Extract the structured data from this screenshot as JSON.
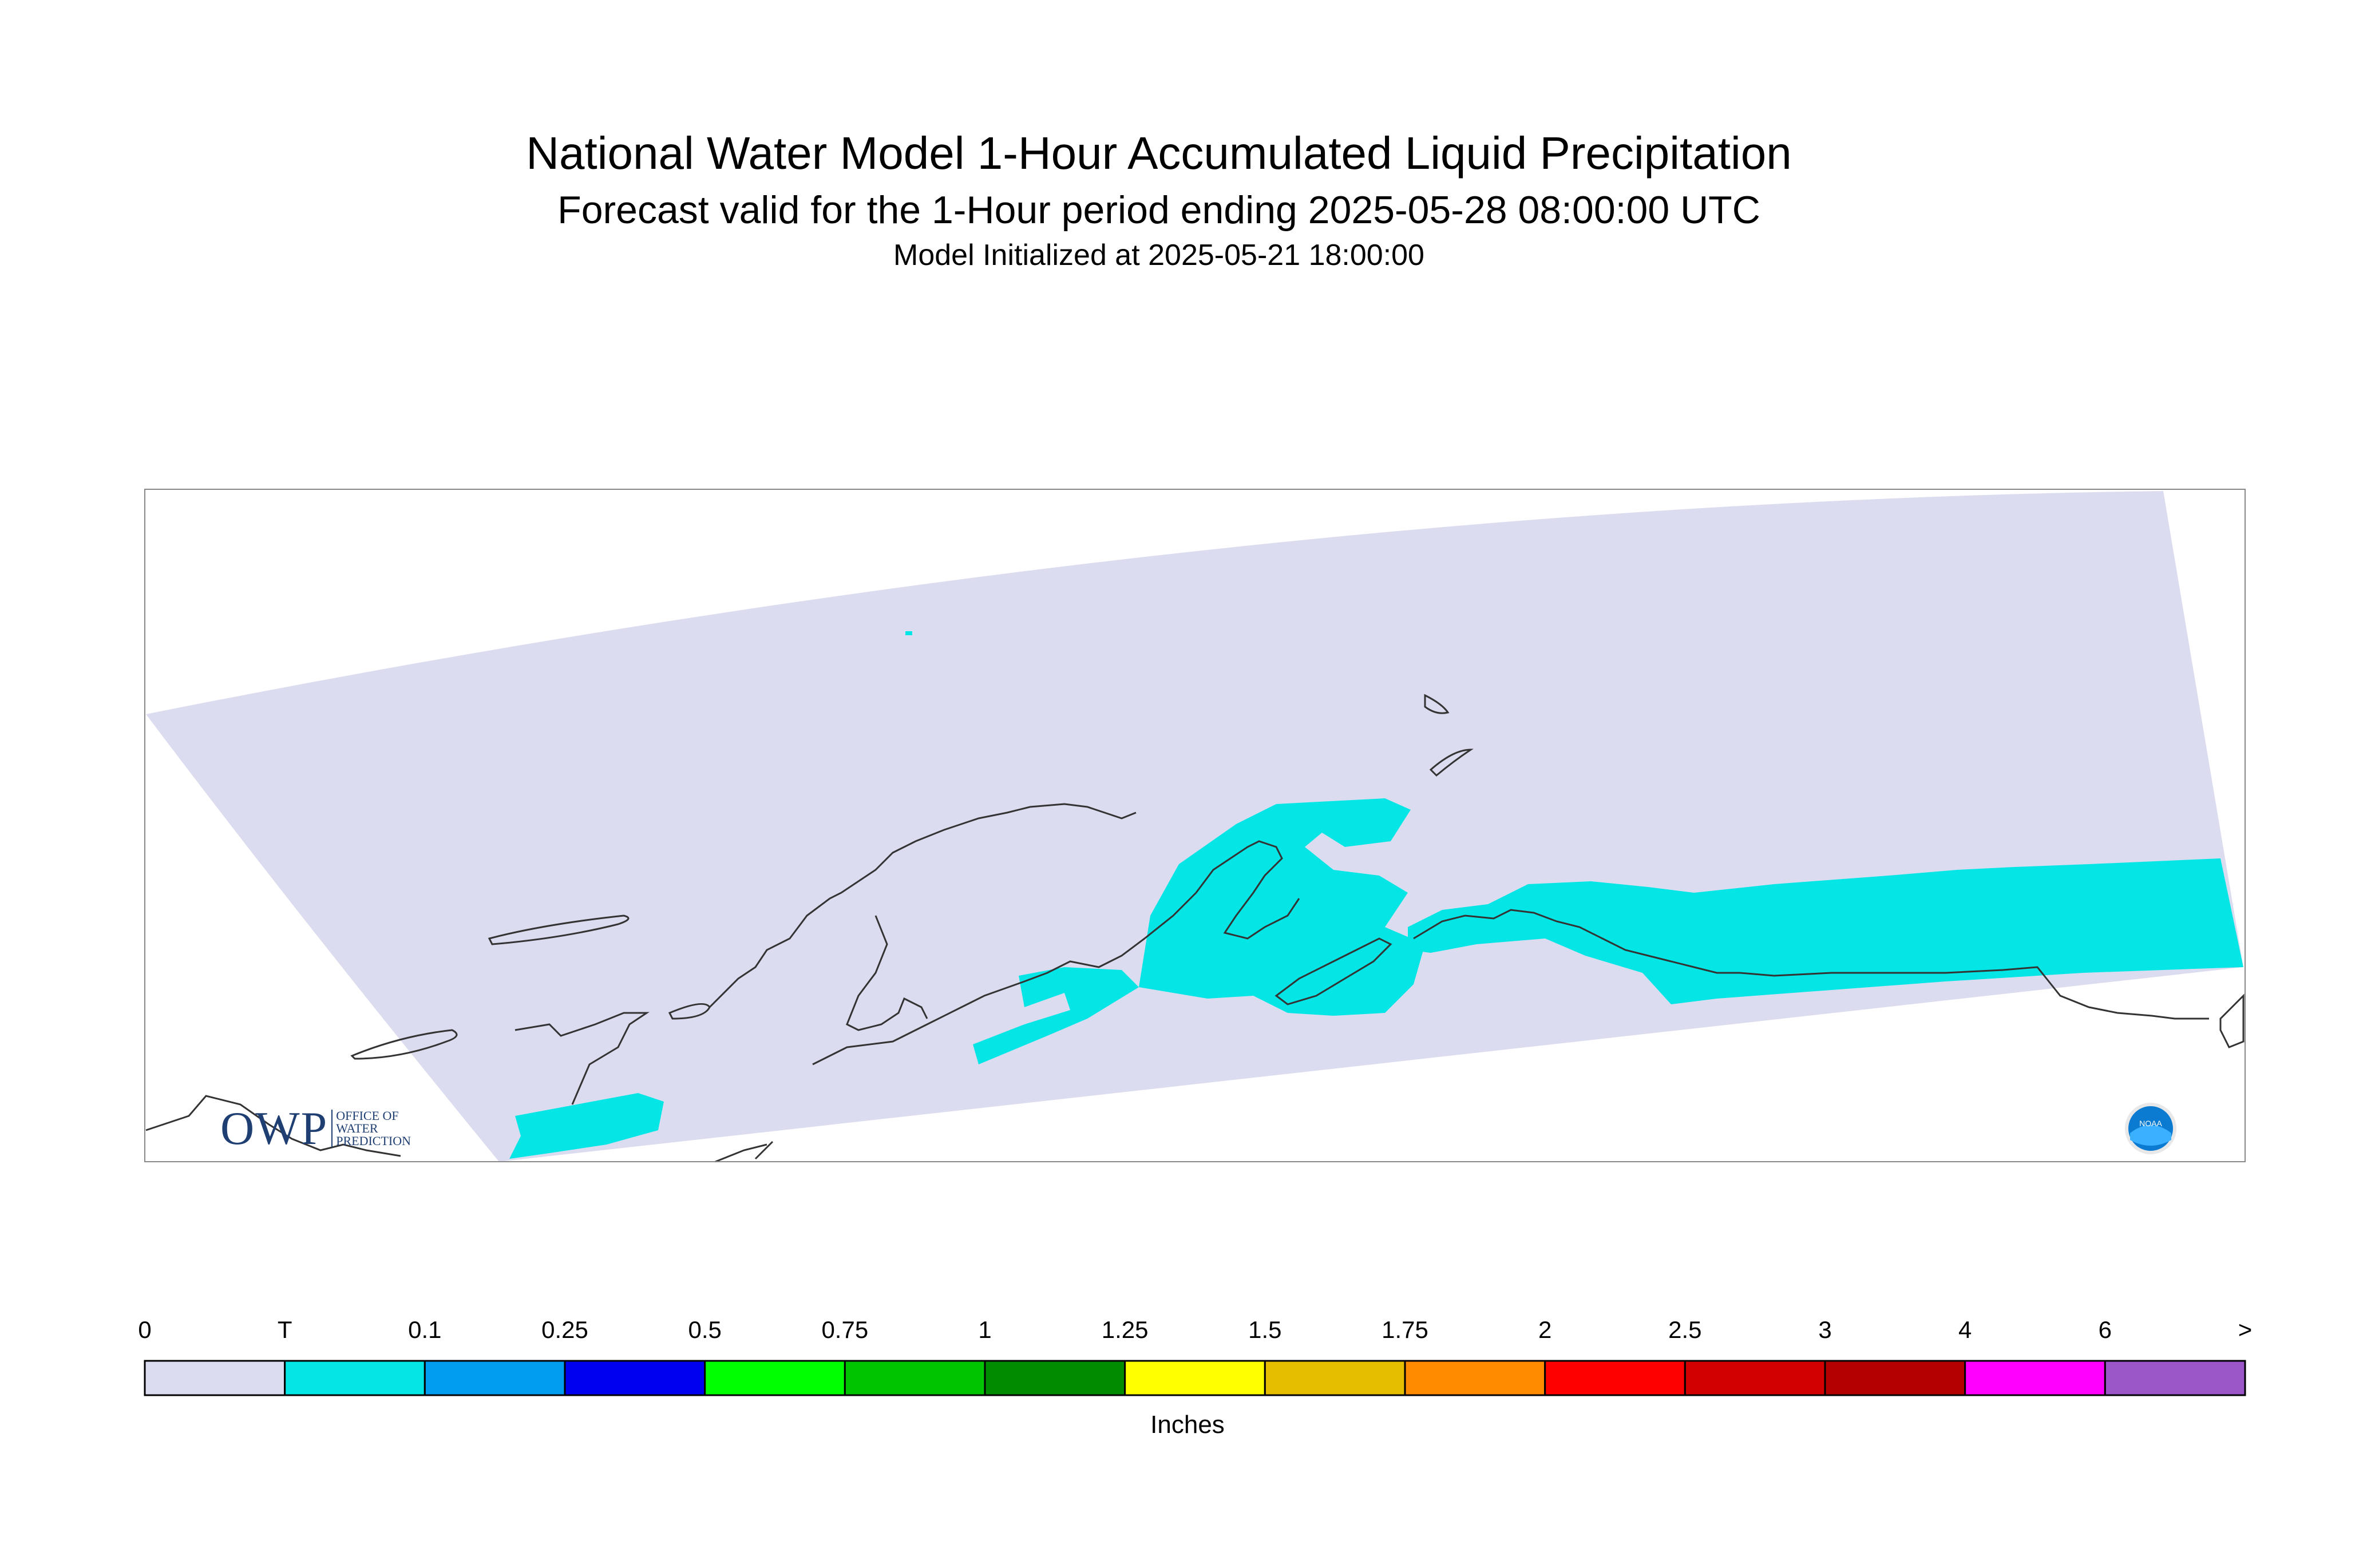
{
  "title": "National Water Model 1-Hour Accumulated Liquid Precipitation",
  "subtitle": "Forecast valid for the 1-Hour period ending 2025-05-28 08:00:00 UTC",
  "init_line": "Model Initialized at 2025-05-21 18:00:00",
  "legend": {
    "labels": [
      "0",
      "T",
      "0.1",
      "0.25",
      "0.5",
      "0.75",
      "1",
      "1.25",
      "1.5",
      "1.75",
      "2",
      "2.5",
      "3",
      "4",
      "6",
      ">"
    ],
    "colors": [
      "#dcdcf0",
      "#04e6e6",
      "#009ef0",
      "#0000f0",
      "#00ff00",
      "#00c400",
      "#008c00",
      "#ffff00",
      "#e6be00",
      "#ff8c00",
      "#ff0000",
      "#d20000",
      "#b40000",
      "#ff00ff",
      "#9b56c8"
    ],
    "units": "Inches"
  },
  "colors": {
    "domain_fill": "#dcdcf0",
    "precip_trace": "#04e6e6",
    "coastline": "#333333",
    "frame": "#888888"
  },
  "logos": {
    "owp_text": "OWP",
    "owp_small": [
      "OFFICE OF",
      "WATER",
      "PREDICTION"
    ],
    "noaa_text": "NOAA"
  }
}
